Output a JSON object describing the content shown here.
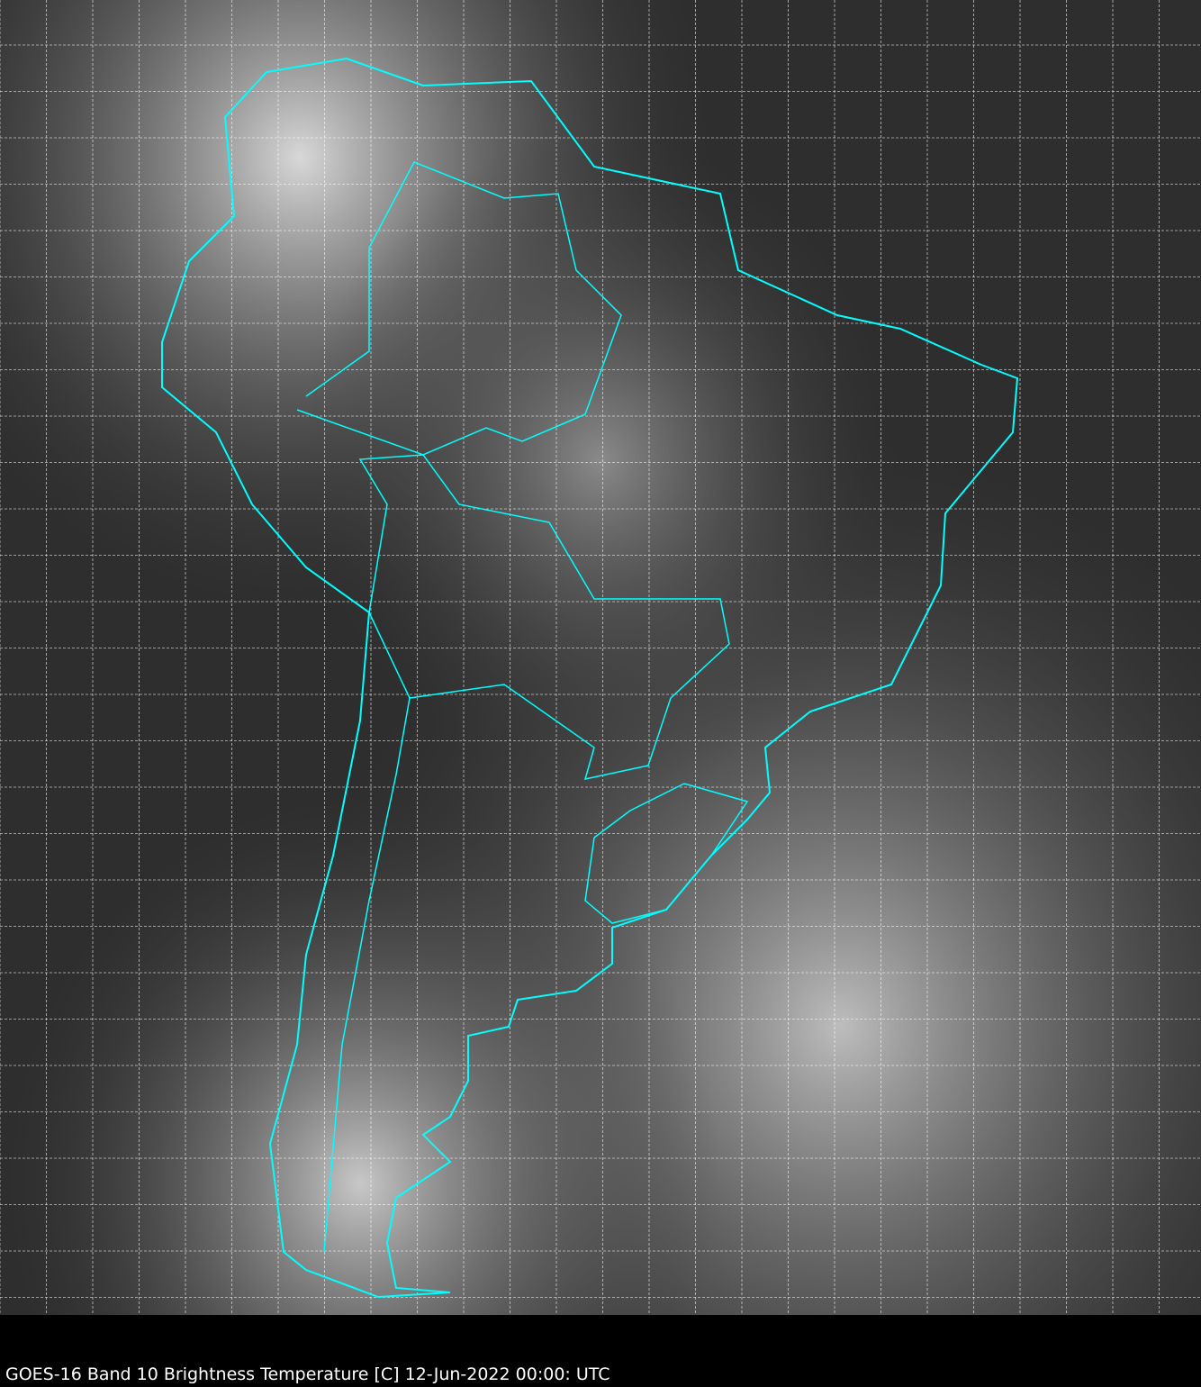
{
  "caption": "GOES-16 Band 10  Brightness Temperature [C] 12-Jun-2022 00:00: UTC",
  "map": {
    "imagery": "satellite infrared grayscale",
    "region": "South America",
    "gridlines": true,
    "colors": {
      "borders": "#00ffff",
      "grid": "#ffffff",
      "background": "#000000"
    }
  }
}
